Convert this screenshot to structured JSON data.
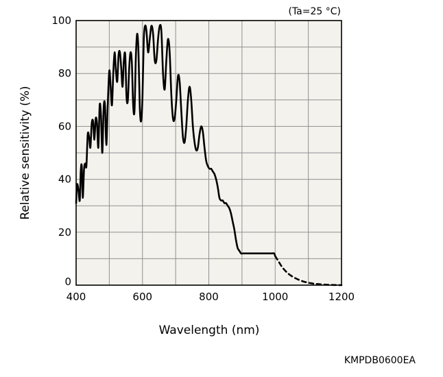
{
  "chart_data": {
    "type": "line",
    "xlabel": "Wavelength (nm)",
    "ylabel": "Relative sensitivity (%)",
    "condition": "(Ta=25 °C)",
    "xlim": [
      400,
      1200
    ],
    "ylim": [
      0,
      100
    ],
    "x_ticks": [
      400,
      600,
      800,
      1000,
      1200
    ],
    "y_ticks": [
      0,
      20,
      40,
      60,
      80,
      100
    ],
    "x_grid_step": 100,
    "y_grid_step": 10,
    "grid": true,
    "plot_background": "#f4f2ec",
    "line_color": "#000000",
    "series": [
      {
        "style": "solid",
        "x": [
          400,
          403,
          407,
          411,
          414,
          417,
          420,
          424,
          428,
          431,
          435,
          439,
          443,
          447,
          451,
          455,
          459,
          463,
          467,
          471,
          475,
          479,
          483,
          487,
          491,
          495,
          500,
          504,
          508,
          512,
          516,
          520,
          524,
          528,
          532,
          536,
          540,
          544,
          548,
          552,
          556,
          560,
          564,
          568,
          572,
          576,
          580,
          584,
          588,
          592,
          596,
          600,
          604,
          608,
          612,
          617,
          622,
          627,
          632,
          637,
          642,
          647,
          652,
          657,
          662,
          667,
          672,
          677,
          682,
          687,
          692,
          697,
          702,
          707,
          712,
          717,
          722,
          727,
          732,
          737,
          742,
          747,
          752,
          757,
          762,
          767,
          772,
          777,
          782,
          787,
          792,
          797,
          802,
          807,
          812,
          817,
          822,
          827,
          832,
          837,
          842,
          847,
          852,
          857,
          862,
          867,
          872,
          877,
          882,
          887,
          892,
          897,
          902,
          907,
          912,
          917,
          922,
          927,
          932,
          937,
          942,
          947,
          952,
          957,
          962,
          967,
          972,
          977,
          982,
          987,
          992,
          997,
          1000
        ],
        "y": [
          31,
          38,
          36,
          32,
          43,
          45,
          33,
          44,
          46,
          45,
          57,
          56,
          52,
          61,
          62,
          55,
          63,
          61,
          52,
          68,
          64,
          50,
          67,
          68,
          53,
          67,
          81,
          75,
          68,
          80,
          88,
          81,
          77,
          87,
          88,
          82,
          75,
          85,
          87,
          71,
          70,
          82,
          88,
          84,
          68,
          66,
          86,
          95,
          88,
          67,
          62,
          71,
          93,
          98,
          96,
          88,
          93,
          98,
          95,
          85,
          85,
          93,
          98,
          96,
          80,
          74,
          85,
          93,
          88,
          72,
          63,
          63,
          70,
          79,
          77,
          66,
          56,
          54,
          60,
          70,
          75,
          70,
          60,
          54,
          51,
          52,
          57,
          60,
          58,
          52,
          47,
          45,
          44,
          44,
          43,
          42,
          40,
          37,
          33,
          32,
          32,
          31,
          31,
          30,
          29,
          27,
          24,
          21,
          17,
          14,
          13,
          12,
          12,
          12,
          12,
          12,
          12,
          12,
          12,
          12,
          12,
          12,
          12,
          12,
          12,
          12,
          12,
          12,
          12,
          12,
          12,
          12,
          11
        ]
      },
      {
        "style": "dashed",
        "x": [
          1000,
          1010,
          1020,
          1030,
          1040,
          1050,
          1060,
          1070,
          1080,
          1090,
          1100,
          1110,
          1120,
          1130,
          1140,
          1150,
          1160,
          1170,
          1180,
          1190,
          1200
        ],
        "y": [
          11,
          9,
          7,
          5.5,
          4.3,
          3.4,
          2.7,
          2.1,
          1.6,
          1.2,
          0.9,
          0.7,
          0.5,
          0.4,
          0.3,
          0.2,
          0.15,
          0.1,
          0.05,
          0.02,
          0
        ]
      }
    ]
  },
  "figure_code": "KMPDB0600EA"
}
